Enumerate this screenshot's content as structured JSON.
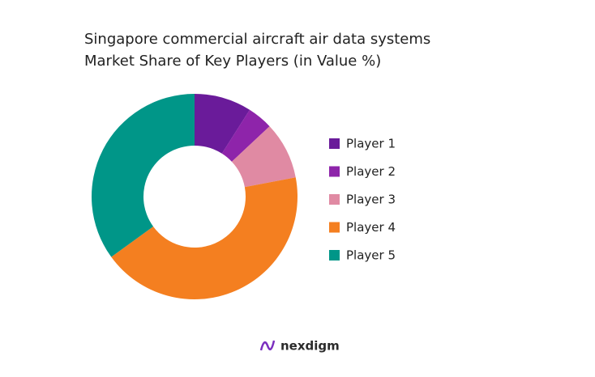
{
  "chart_data": {
    "type": "donut",
    "title": "Singapore commercial aircraft air data systems",
    "subtitle": "Market Share of Key Players (in Value %)",
    "categories": [
      "Player 1",
      "Player 2",
      "Player 3",
      "Player 4",
      "Player 5"
    ],
    "values": [
      9,
      4,
      9,
      43,
      35
    ],
    "colors": [
      "#6a1b9a",
      "#8e24aa",
      "#e08aa3",
      "#f47f20",
      "#009688"
    ],
    "legend": "right"
  },
  "footer": {
    "logo": "nexdigm"
  }
}
